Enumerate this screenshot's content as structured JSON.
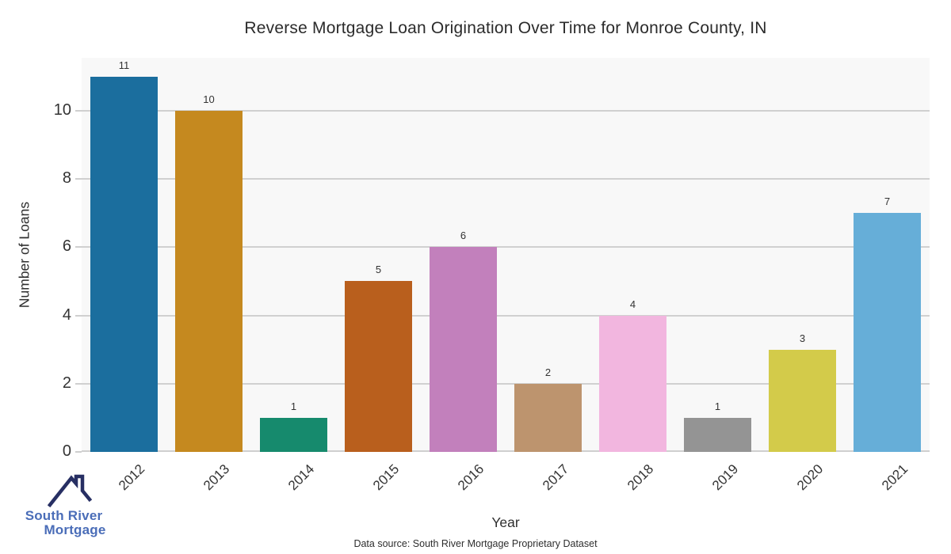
{
  "chart_data": {
    "type": "bar",
    "title": "Reverse Mortgage Loan Origination Over Time for Monroe County, IN",
    "categories": [
      "2012",
      "2013",
      "2014",
      "2015",
      "2016",
      "2017",
      "2018",
      "2019",
      "2020",
      "2021"
    ],
    "values": [
      11,
      10,
      1,
      5,
      6,
      2,
      4,
      1,
      3,
      7
    ],
    "bar_colors": [
      "#1b6e9e",
      "#c5891f",
      "#168a6d",
      "#b95f1d",
      "#c280bc",
      "#bd946e",
      "#f2b6df",
      "#949494",
      "#d3cb4a",
      "#66aed8"
    ],
    "xlabel": "Year",
    "ylabel": "Number of Loans",
    "ylim": [
      0,
      11.55
    ],
    "yticks": [
      0,
      2,
      4,
      6,
      8,
      10
    ],
    "grid": true,
    "legend": "none",
    "value_labels": true,
    "plot_bg": "#f8f8f8",
    "grid_color": "#d0d0d0"
  },
  "footer": {
    "source_note": "Data source: South River Mortgage Proprietary Dataset"
  },
  "logo": {
    "icon": "house-roof-icon",
    "line1": "South River",
    "line2": "Mortgage",
    "text_color": "#4a6db8",
    "icon_color": "#272f63"
  }
}
